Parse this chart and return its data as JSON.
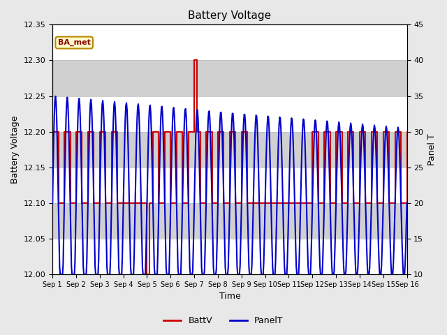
{
  "title": "Battery Voltage",
  "ylabel_left": "Battery Voltage",
  "ylabel_right": "Panel T",
  "xlabel": "Time",
  "legend_labels": [
    "BattV",
    "PanelT"
  ],
  "battv_color": "#CC0000",
  "panelt_color": "#0000CC",
  "annotation_text": "BA_met",
  "annotation_bg": "#FFFFCC",
  "annotation_border": "#BB8800",
  "ylim_left": [
    12.0,
    12.35
  ],
  "ylim_right": [
    10,
    45
  ],
  "yticks_left": [
    12.0,
    12.05,
    12.1,
    12.15,
    12.2,
    12.25,
    12.3,
    12.35
  ],
  "yticks_right": [
    10,
    15,
    20,
    25,
    30,
    35,
    40,
    45
  ],
  "background_color": "#e8e8e8",
  "grid_color": "#ffffff",
  "band_color": "#d0d0d0",
  "battv_x": [
    1.0,
    1.0,
    1.25,
    1.25,
    1.5,
    1.5,
    1.75,
    1.75,
    2.0,
    2.0,
    2.25,
    2.25,
    2.5,
    2.5,
    2.75,
    2.75,
    3.0,
    3.0,
    3.25,
    3.25,
    3.5,
    3.5,
    3.75,
    3.75,
    4.0,
    4.0,
    4.25,
    4.25,
    4.5,
    4.5,
    4.75,
    4.75,
    5.0,
    5.0,
    5.1,
    5.1,
    5.25,
    5.25,
    5.5,
    5.5,
    5.75,
    5.75,
    6.0,
    6.0,
    6.25,
    6.25,
    6.5,
    6.5,
    6.75,
    6.75,
    7.0,
    7.0,
    7.1,
    7.1,
    7.25,
    7.25,
    7.5,
    7.5,
    7.75,
    7.75,
    8.0,
    8.0,
    8.25,
    8.25,
    8.5,
    8.5,
    8.75,
    8.75,
    9.0,
    9.0,
    9.25,
    9.25,
    9.5,
    9.5,
    9.75,
    9.75,
    10.0,
    10.0,
    10.25,
    10.25,
    10.5,
    10.5,
    10.75,
    10.75,
    11.0,
    11.0,
    11.25,
    11.25,
    11.5,
    11.5,
    11.75,
    11.75,
    12.0,
    12.0,
    12.25,
    12.25,
    12.5,
    12.5,
    12.75,
    12.75,
    13.0,
    13.0,
    13.25,
    13.25,
    13.5,
    13.5,
    13.75,
    13.75,
    14.0,
    14.0,
    14.25,
    14.25,
    14.5,
    14.5,
    14.75,
    14.75,
    15.0,
    15.0,
    15.25,
    15.25,
    15.5,
    15.5,
    15.75,
    15.75,
    16.0
  ],
  "battv_y": [
    12.3,
    12.2,
    12.2,
    12.1,
    12.1,
    12.2,
    12.2,
    12.1,
    12.1,
    12.2,
    12.2,
    12.1,
    12.1,
    12.2,
    12.2,
    12.1,
    12.1,
    12.2,
    12.2,
    12.1,
    12.1,
    12.2,
    12.2,
    12.1,
    12.1,
    12.1,
    12.1,
    12.1,
    12.1,
    12.1,
    12.1,
    12.1,
    12.1,
    12.0,
    12.0,
    12.1,
    12.1,
    12.2,
    12.2,
    12.1,
    12.1,
    12.2,
    12.2,
    12.1,
    12.1,
    12.2,
    12.2,
    12.1,
    12.1,
    12.2,
    12.2,
    12.3,
    12.3,
    12.2,
    12.2,
    12.1,
    12.1,
    12.2,
    12.2,
    12.1,
    12.1,
    12.2,
    12.2,
    12.1,
    12.1,
    12.2,
    12.2,
    12.1,
    12.1,
    12.2,
    12.2,
    12.1,
    12.1,
    12.1,
    12.1,
    12.1,
    12.1,
    12.1,
    12.1,
    12.1,
    12.1,
    12.1,
    12.1,
    12.1,
    12.1,
    12.1,
    12.1,
    12.1,
    12.1,
    12.1,
    12.1,
    12.1,
    12.1,
    12.2,
    12.2,
    12.1,
    12.1,
    12.2,
    12.2,
    12.1,
    12.1,
    12.2,
    12.2,
    12.1,
    12.1,
    12.2,
    12.2,
    12.1,
    12.1,
    12.2,
    12.2,
    12.1,
    12.1,
    12.2,
    12.2,
    12.1,
    12.1,
    12.2,
    12.2,
    12.1,
    12.1,
    12.2,
    12.2,
    12.1,
    12.2
  ]
}
